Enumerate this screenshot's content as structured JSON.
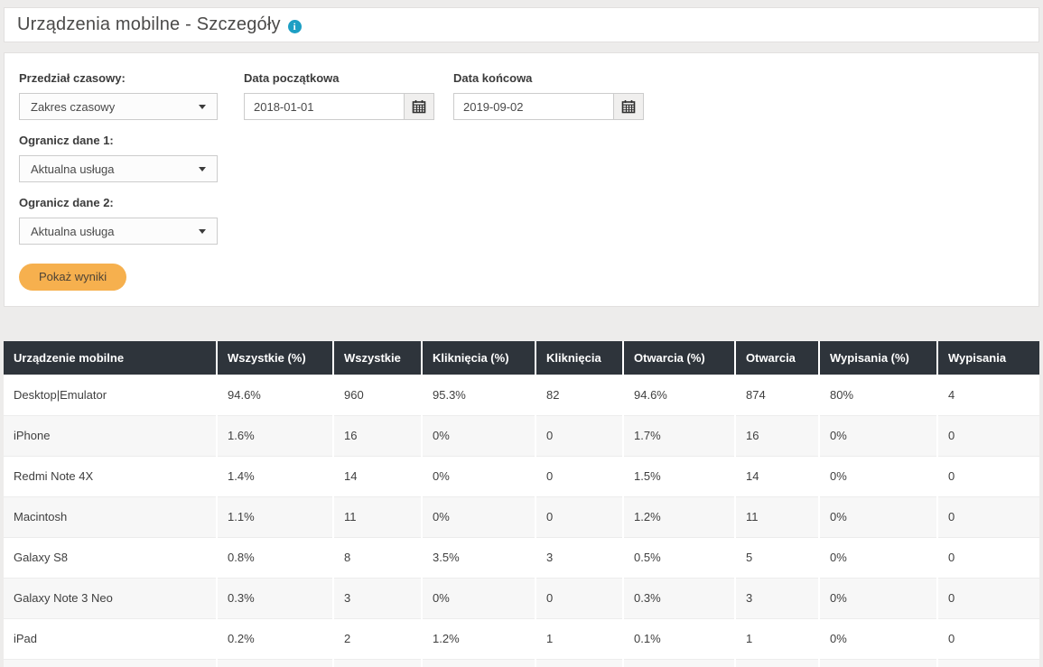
{
  "header": {
    "title": "Urządzenia mobilne - Szczegóły",
    "info_icon_glyph": "i",
    "info_icon_color": "#1d9fc4"
  },
  "filters": {
    "time_range": {
      "label": "Przedział czasowy:",
      "value": "Zakres czasowy"
    },
    "start_date": {
      "label": "Data początkowa",
      "value": "2018-01-01"
    },
    "end_date": {
      "label": "Data końcowa",
      "value": "2019-09-02"
    },
    "limit1": {
      "label": "Ogranicz dane 1:",
      "value": "Aktualna usługa"
    },
    "limit2": {
      "label": "Ogranicz dane 2:",
      "value": "Aktualna usługa"
    },
    "submit_label": "Pokaż wyniki",
    "submit_color": "#f6b04e"
  },
  "table": {
    "columns": [
      "Urządzenie mobilne",
      "Wszystkie (%)",
      "Wszystkie",
      "Kliknięcia (%)",
      "Kliknięcia",
      "Otwarcia (%)",
      "Otwarcia",
      "Wypisania (%)",
      "Wypisania"
    ],
    "rows": [
      [
        "Desktop|Emulator",
        "94.6%",
        "960",
        "95.3%",
        "82",
        "94.6%",
        "874",
        "80%",
        "4"
      ],
      [
        "iPhone",
        "1.6%",
        "16",
        "0%",
        "0",
        "1.7%",
        "16",
        "0%",
        "0"
      ],
      [
        "Redmi Note 4X",
        "1.4%",
        "14",
        "0%",
        "0",
        "1.5%",
        "14",
        "0%",
        "0"
      ],
      [
        "Macintosh",
        "1.1%",
        "11",
        "0%",
        "0",
        "1.2%",
        "11",
        "0%",
        "0"
      ],
      [
        "Galaxy S8",
        "0.8%",
        "8",
        "3.5%",
        "3",
        "0.5%",
        "5",
        "0%",
        "0"
      ],
      [
        "Galaxy Note 3 Neo",
        "0.3%",
        "3",
        "0%",
        "0",
        "0.3%",
        "3",
        "0%",
        "0"
      ],
      [
        "iPad",
        "0.2%",
        "2",
        "1.2%",
        "1",
        "0.1%",
        "1",
        "0%",
        "0"
      ]
    ],
    "header_bg": "#2e343b",
    "alt_row_bg": "#f7f7f7"
  }
}
